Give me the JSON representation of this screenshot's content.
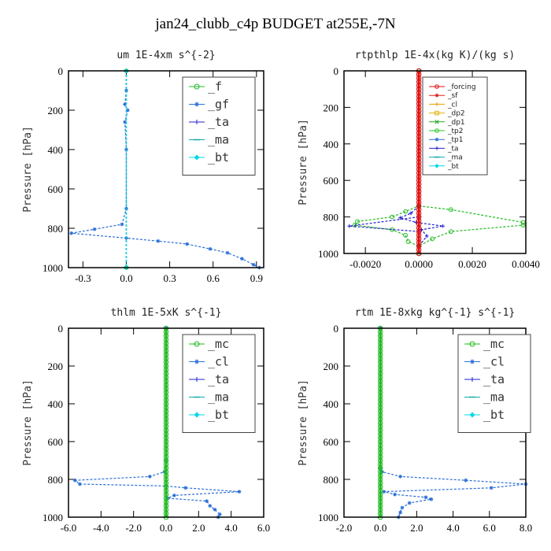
{
  "figure_title": "jan24_clubb_c4p  BUDGET at255E,-7N",
  "chart_data": [
    {
      "type": "line",
      "title": "um  1E-4xm s^{-2}",
      "ylabel": "Pressure [hPa]",
      "xlim": [
        -0.4,
        0.95
      ],
      "ylim": [
        1000,
        0
      ],
      "xticks": [
        "-0.3",
        "0.0",
        "0.3",
        "0.6",
        "0.9"
      ],
      "xtick_values": [
        -0.3,
        0.0,
        0.3,
        0.6,
        0.9
      ],
      "yticks": [
        "0",
        "200",
        "400",
        "600",
        "800",
        "1000"
      ],
      "ytick_values": [
        0,
        200,
        400,
        600,
        800,
        1000
      ],
      "legend_style": "large",
      "legend": [
        {
          "label": "_f",
          "color": "#22bb22",
          "marker": "circle"
        },
        {
          "label": "_gf",
          "color": "#2a6fd6",
          "marker": "star"
        },
        {
          "label": "_ta",
          "color": "#2222cc",
          "marker": "plus"
        },
        {
          "label": "_ma",
          "color": "#11a8a8",
          "marker": "dash"
        },
        {
          "label": "_bt",
          "color": "#00d8e8",
          "marker": "diamond"
        }
      ],
      "series": [
        {
          "color": "#22bb22",
          "marker": "circle",
          "points": [
            [
              0.0,
              0
            ],
            [
              0.0,
              1000
            ]
          ]
        },
        {
          "color": "#2a6fd6",
          "marker": "star",
          "points": [
            [
              0.0,
              0
            ],
            [
              0.0,
              100
            ],
            [
              -0.01,
              170
            ],
            [
              0.01,
              200
            ],
            [
              -0.01,
              260
            ],
            [
              0.0,
              400
            ],
            [
              0.0,
              700
            ],
            [
              -0.03,
              780
            ],
            [
              -0.22,
              805
            ],
            [
              -0.38,
              825
            ],
            [
              0.0,
              850
            ],
            [
              0.22,
              865
            ],
            [
              0.42,
              880
            ],
            [
              0.58,
              905
            ],
            [
              0.7,
              925
            ],
            [
              0.8,
              955
            ],
            [
              0.88,
              985
            ],
            [
              0.92,
              1000
            ]
          ]
        },
        {
          "color": "#2222cc",
          "marker": "plus",
          "points": [
            [
              0.0,
              0
            ],
            [
              0.0,
              1000
            ]
          ]
        },
        {
          "color": "#11a8a8",
          "marker": "dash",
          "points": [
            [
              0.0,
              0
            ],
            [
              0.0,
              1000
            ]
          ]
        },
        {
          "color": "#00d8e8",
          "marker": "diamond",
          "points": [
            [
              0.0,
              0
            ],
            [
              0.0,
              1000
            ]
          ]
        }
      ]
    },
    {
      "type": "line",
      "title": "rtpthlp  1E-4x(kg K)/(kg s)",
      "ylabel": "Pressure [hPa]",
      "xlim": [
        -0.0028,
        0.004
      ],
      "ylim": [
        1000,
        0
      ],
      "xticks": [
        "-0.0020",
        "0.0000",
        "0.0020",
        "0.0040"
      ],
      "xtick_values": [
        -0.002,
        0.0,
        0.002,
        0.004
      ],
      "yticks": [
        "0",
        "200",
        "400",
        "600",
        "800",
        "1000"
      ],
      "ytick_values": [
        0,
        200,
        400,
        600,
        800,
        1000
      ],
      "legend_style": "small",
      "legend": [
        {
          "label": "_forcing",
          "color": "#dd1111",
          "marker": "circle"
        },
        {
          "label": "_sf",
          "color": "#dd2222",
          "marker": "star"
        },
        {
          "label": "_cl",
          "color": "#e0a000",
          "marker": "plus"
        },
        {
          "label": "_dp2",
          "color": "#e0b000",
          "marker": "square"
        },
        {
          "label": "_dp1",
          "color": "#22aa22",
          "marker": "x"
        },
        {
          "label": "_tp2",
          "color": "#22cc22",
          "marker": "circle"
        },
        {
          "label": "_tp1",
          "color": "#2a6fd6",
          "marker": "star"
        },
        {
          "label": "_ta",
          "color": "#2222cc",
          "marker": "plus"
        },
        {
          "label": "_ma",
          "color": "#11a8a8",
          "marker": "dash"
        },
        {
          "label": "_bt",
          "color": "#00d8e8",
          "marker": "diamond"
        }
      ],
      "series": [
        {
          "color": "#22bb22",
          "marker": "circle",
          "points": [
            [
              0.0,
              0
            ],
            [
              0.0,
              740
            ],
            [
              -0.0005,
              770
            ],
            [
              -0.001,
              800
            ],
            [
              -0.0023,
              825
            ],
            [
              -0.0024,
              845
            ],
            [
              -0.001,
              870
            ],
            [
              -0.0005,
              900
            ],
            [
              -0.0004,
              935
            ],
            [
              0.0,
              960
            ],
            [
              0.0,
              1000
            ]
          ]
        },
        {
          "color": "#22bb22",
          "marker": "circle",
          "points": [
            [
              0.0,
              740
            ],
            [
              0.0012,
              760
            ],
            [
              0.0039,
              830
            ],
            [
              0.0039,
              845
            ],
            [
              0.0012,
              880
            ],
            [
              0.0005,
              920
            ],
            [
              0.0,
              960
            ]
          ]
        },
        {
          "color": "#2222cc",
          "marker": "plus",
          "points": [
            [
              0.0,
              740
            ],
            [
              -0.0003,
              780
            ],
            [
              -0.0007,
              805
            ],
            [
              -0.0001,
              830
            ],
            [
              0.0009,
              850
            ],
            [
              0.0001,
              870
            ],
            [
              0.0003,
              905
            ],
            [
              0.0,
              960
            ]
          ]
        },
        {
          "color": "#2222cc",
          "marker": "plus",
          "points": [
            [
              0.0,
              800
            ],
            [
              -0.0026,
              850
            ],
            [
              0.0,
              880
            ]
          ]
        },
        {
          "color": "#dd1111",
          "marker": "circle",
          "width": 3,
          "points": [
            [
              0.0,
              0
            ],
            [
              0.0,
              1000
            ]
          ]
        }
      ]
    },
    {
      "type": "line",
      "title": "thlm  1E-5xK s^{-1}",
      "ylabel": "Pressure [hPa]",
      "xlim": [
        -6.0,
        6.0
      ],
      "ylim": [
        1000,
        0
      ],
      "xticks": [
        "-6.0",
        "-4.0",
        "-2.0",
        "0.0",
        "2.0",
        "4.0",
        "6.0"
      ],
      "xtick_values": [
        -6,
        -4,
        -2,
        0,
        2,
        4,
        6
      ],
      "yticks": [
        "0",
        "200",
        "400",
        "600",
        "800",
        "1000"
      ],
      "ytick_values": [
        0,
        200,
        400,
        600,
        800,
        1000
      ],
      "legend_style": "large",
      "legend": [
        {
          "label": "_mc",
          "color": "#22bb22",
          "marker": "circle"
        },
        {
          "label": "_cl",
          "color": "#2a6fd6",
          "marker": "star"
        },
        {
          "label": "_ta",
          "color": "#2222cc",
          "marker": "plus"
        },
        {
          "label": "_ma",
          "color": "#11a8a8",
          "marker": "dash"
        },
        {
          "label": "_bt",
          "color": "#00d8e8",
          "marker": "diamond"
        }
      ],
      "series": [
        {
          "color": "#2a6fd6",
          "marker": "star",
          "points": [
            [
              0.0,
              0
            ],
            [
              0.0,
              700
            ],
            [
              -0.1,
              760
            ],
            [
              -1.0,
              785
            ],
            [
              -5.6,
              805
            ],
            [
              -5.3,
              825
            ],
            [
              0.0,
              835
            ],
            [
              1.2,
              845
            ],
            [
              4.5,
              865
            ],
            [
              0.5,
              885
            ],
            [
              0.1,
              900
            ],
            [
              2.5,
              915
            ],
            [
              2.7,
              940
            ],
            [
              3.0,
              960
            ],
            [
              3.3,
              985
            ],
            [
              3.2,
              1000
            ]
          ]
        },
        {
          "color": "#22bb22",
          "marker": "circle",
          "width": 3,
          "points": [
            [
              0.0,
              0
            ],
            [
              0.0,
              1000
            ]
          ]
        }
      ]
    },
    {
      "type": "line",
      "title": "rtm  1E-8xkg kg^{-1} s^{-1}",
      "ylabel": "Pressure [hPa]",
      "xlim": [
        -2.0,
        8.0
      ],
      "ylim": [
        1000,
        0
      ],
      "xticks": [
        "-2.0",
        "0.0",
        "2.0",
        "4.0",
        "6.0",
        "8.0"
      ],
      "xtick_values": [
        -2,
        0,
        2,
        4,
        6,
        8
      ],
      "yticks": [
        "0",
        "200",
        "400",
        "600",
        "800",
        "1000"
      ],
      "ytick_values": [
        0,
        200,
        400,
        600,
        800,
        1000
      ],
      "legend_style": "large",
      "legend": [
        {
          "label": "_mc",
          "color": "#22bb22",
          "marker": "circle"
        },
        {
          "label": "_cl",
          "color": "#2a6fd6",
          "marker": "star"
        },
        {
          "label": "_ta",
          "color": "#2222cc",
          "marker": "plus"
        },
        {
          "label": "_ma",
          "color": "#11a8a8",
          "marker": "dash"
        },
        {
          "label": "_bt",
          "color": "#00d8e8",
          "marker": "diamond"
        }
      ],
      "series": [
        {
          "color": "#2a6fd6",
          "marker": "star",
          "points": [
            [
              0.0,
              0
            ],
            [
              0.0,
              740
            ],
            [
              0.1,
              760
            ],
            [
              1.1,
              785
            ],
            [
              4.7,
              805
            ],
            [
              8.0,
              825
            ],
            [
              6.1,
              845
            ],
            [
              0.2,
              865
            ],
            [
              0.8,
              880
            ],
            [
              2.5,
              895
            ],
            [
              2.8,
              905
            ],
            [
              1.6,
              925
            ],
            [
              1.2,
              950
            ],
            [
              1.1,
              975
            ],
            [
              1.0,
              1000
            ]
          ]
        },
        {
          "color": "#22bb22",
          "marker": "circle",
          "width": 3,
          "points": [
            [
              0.0,
              0
            ],
            [
              0.0,
              1000
            ]
          ]
        }
      ]
    }
  ]
}
